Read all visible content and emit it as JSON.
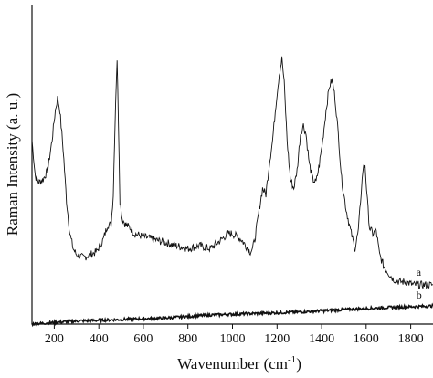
{
  "chart_data": {
    "type": "line",
    "title": "",
    "xlabel": "Wavenumber (cm",
    "xlabel_sup": "-1",
    "xlabel_close": ")",
    "ylabel": "Raman Intensity (a. u.)",
    "xlim": [
      100,
      1900
    ],
    "ylim": [
      0,
      100
    ],
    "y_ticks_shown": false,
    "grid": false,
    "legend": "none",
    "x_ticks": [
      {
        "v": 200,
        "label": "200"
      },
      {
        "v": 400,
        "label": "400"
      },
      {
        "v": 600,
        "label": "600"
      },
      {
        "v": 800,
        "label": "800"
      },
      {
        "v": 1000,
        "label": "1000"
      },
      {
        "v": 1200,
        "label": "1200"
      },
      {
        "v": 1400,
        "label": "1400"
      },
      {
        "v": 1600,
        "label": "1600"
      },
      {
        "v": 1800,
        "label": "1800"
      }
    ],
    "series": [
      {
        "name": "a",
        "color": "#111111",
        "x": [
          100,
          115,
          130,
          150,
          170,
          190,
          205,
          215,
          225,
          240,
          255,
          270,
          285,
          300,
          330,
          360,
          390,
          420,
          440,
          455,
          465,
          475,
          482,
          488,
          495,
          505,
          520,
          540,
          560,
          600,
          650,
          700,
          750,
          800,
          850,
          900,
          950,
          980,
          1000,
          1020,
          1040,
          1060,
          1080,
          1090,
          1100,
          1120,
          1135,
          1150,
          1165,
          1180,
          1195,
          1210,
          1222,
          1232,
          1245,
          1260,
          1275,
          1290,
          1305,
          1318,
          1330,
          1345,
          1360,
          1375,
          1390,
          1405,
          1420,
          1435,
          1448,
          1460,
          1475,
          1490,
          1510,
          1530,
          1550,
          1565,
          1575,
          1585,
          1595,
          1605,
          1615,
          1630,
          1645,
          1660,
          1680,
          1700,
          1720,
          1750,
          1780,
          1810,
          1840,
          1870,
          1900
        ],
        "y": [
          58,
          46,
          44,
          45,
          48,
          58,
          68,
          72,
          68,
          55,
          38,
          27,
          22,
          20,
          19,
          20,
          21,
          25,
          30,
          30,
          40,
          70,
          85,
          65,
          38,
          32,
          30,
          29,
          27,
          26,
          25,
          24,
          23,
          22,
          23,
          22,
          25,
          27,
          27,
          26,
          25,
          23,
          21,
          22,
          25,
          35,
          42,
          40,
          50,
          58,
          70,
          80,
          85,
          77,
          58,
          45,
          42,
          48,
          60,
          63,
          60,
          50,
          45,
          44,
          50,
          58,
          68,
          76,
          78,
          72,
          60,
          45,
          35,
          28,
          22,
          28,
          38,
          48,
          50,
          38,
          29,
          27,
          28,
          20,
          16,
          14,
          12,
          11,
          11,
          10,
          10,
          10,
          10
        ],
        "label_x": 1825,
        "label_y": 13
      },
      {
        "name": "b",
        "color": "#111111",
        "x": [
          100,
          300,
          500,
          700,
          900,
          1100,
          1300,
          1500,
          1700,
          1900
        ],
        "y": [
          -3,
          -2,
          -1.5,
          -1,
          0,
          0.5,
          1,
          1.8,
          2.5,
          3
        ],
        "label_x": 1825,
        "label_y": 5.5
      }
    ]
  }
}
